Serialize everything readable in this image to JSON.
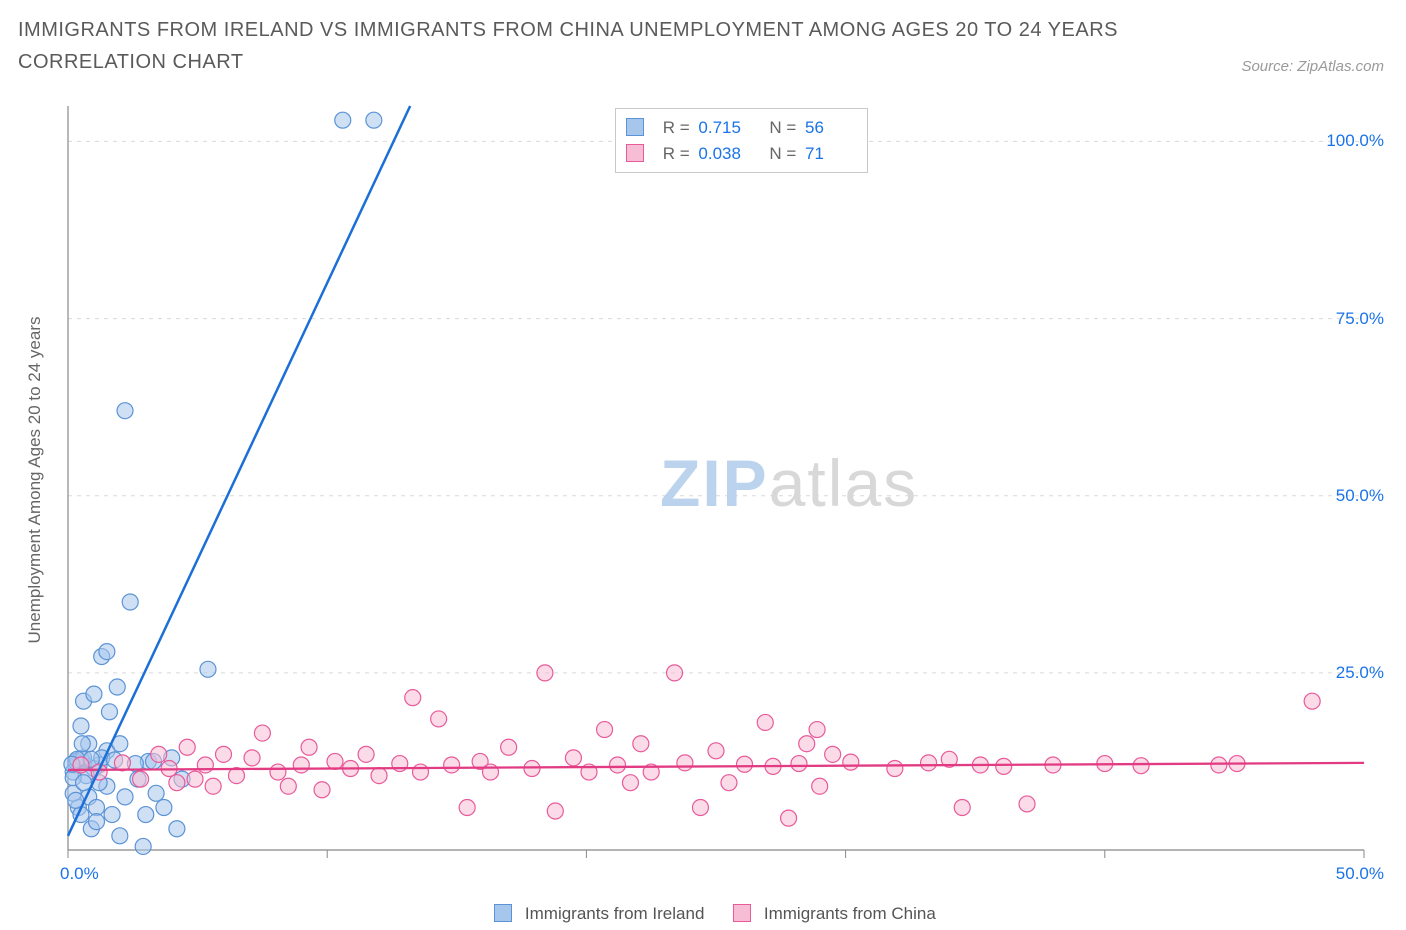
{
  "title": "IMMIGRANTS FROM IRELAND VS IMMIGRANTS FROM CHINA UNEMPLOYMENT AMONG AGES 20 TO 24 YEARS CORRELATION CHART",
  "source_label": "Source: ZipAtlas.com",
  "y_axis_label": "Unemployment Among Ages 20 to 24 years",
  "watermark": {
    "zip": "ZIP",
    "atlas": "atlas"
  },
  "legend": {
    "series_a_name": "Immigrants from Ireland",
    "series_b_name": "Immigrants from China"
  },
  "stats": {
    "series_a": {
      "R_label": "R =",
      "R_value": "0.715",
      "N_label": "N =",
      "N_value": "56"
    },
    "series_b": {
      "R_label": "R =",
      "R_value": "0.038",
      "N_label": "N =",
      "N_value": "71"
    }
  },
  "x_ticks": {
    "positions_pct": [
      0,
      20,
      40,
      60,
      80,
      100
    ],
    "labels": [
      "0.0%",
      "",
      "",
      "",
      "",
      "50.0%"
    ]
  },
  "y_ticks": {
    "positions_pct": [
      25,
      50,
      75,
      100
    ],
    "labels": [
      "25.0%",
      "50.0%",
      "75.0%",
      "100.0%"
    ]
  },
  "chart": {
    "type": "scatter",
    "xlim": [
      0,
      50
    ],
    "ylim": [
      0,
      105
    ],
    "background_color": "#ffffff",
    "grid_color": "#d9d9d9",
    "axis_color": "#888888",
    "marker_radius": 8,
    "marker_stroke_width": 1.2,
    "y_right_label_color": "#1a73e8",
    "x_label_color": "#1a73e8",
    "series_a": {
      "color_stroke": "#5b93d6",
      "color_fill": "#a7c6ec",
      "fill_opacity": 0.55,
      "regression": {
        "x1": 0,
        "y1": 2,
        "x2": 13.2,
        "y2": 105,
        "color": "#1b6fd6",
        "width": 2.5
      },
      "points": [
        [
          0.3,
          12
        ],
        [
          0.6,
          12.3
        ],
        [
          0.5,
          12.9
        ],
        [
          0.8,
          7.5
        ],
        [
          0.2,
          11
        ],
        [
          1.2,
          12
        ],
        [
          1.5,
          14
        ],
        [
          1.1,
          6
        ],
        [
          2.0,
          15
        ],
        [
          1.6,
          19.5
        ],
        [
          0.6,
          21
        ],
        [
          1.0,
          22
        ],
        [
          1.9,
          23
        ],
        [
          1.3,
          27.3
        ],
        [
          1.5,
          28
        ],
        [
          2.4,
          35
        ],
        [
          5.4,
          25.5
        ],
        [
          2.2,
          62
        ],
        [
          1.0,
          11.5
        ],
        [
          0.7,
          10.5
        ],
        [
          0.3,
          12.5
        ],
        [
          2.7,
          10
        ],
        [
          2.2,
          7.5
        ],
        [
          3.1,
          12.5
        ],
        [
          3.4,
          8
        ],
        [
          3.0,
          5
        ],
        [
          4.2,
          3
        ],
        [
          4.0,
          13
        ],
        [
          1.7,
          5
        ],
        [
          1.5,
          9
        ],
        [
          3.3,
          12.5
        ],
        [
          4.4,
          10
        ],
        [
          0.4,
          6
        ],
        [
          0.9,
          3
        ],
        [
          2.0,
          2
        ],
        [
          0.5,
          5
        ],
        [
          1.2,
          9.5
        ],
        [
          0.6,
          13
        ],
        [
          0.8,
          15
        ],
        [
          1.3,
          13
        ],
        [
          0.2,
          10.2
        ],
        [
          0.35,
          12.8
        ],
        [
          0.15,
          12.1
        ],
        [
          0.55,
          15
        ],
        [
          0.5,
          17.5
        ],
        [
          0.2,
          8
        ],
        [
          2.9,
          0.5
        ],
        [
          3.7,
          6
        ],
        [
          1.8,
          12.7
        ],
        [
          10.6,
          103
        ],
        [
          11.8,
          103
        ],
        [
          0.6,
          9.5
        ],
        [
          0.9,
          12.8
        ],
        [
          0.3,
          7
        ],
        [
          1.1,
          4
        ],
        [
          2.6,
          12.2
        ]
      ]
    },
    "series_b": {
      "color_stroke": "#e85a9a",
      "color_fill": "#f7bdd4",
      "fill_opacity": 0.55,
      "regression": {
        "x1": 0,
        "y1": 11.3,
        "x2": 50,
        "y2": 12.3,
        "color": "#e23b83",
        "width": 2.3
      },
      "points": [
        [
          0.5,
          12
        ],
        [
          1.2,
          11
        ],
        [
          2.1,
          12.3
        ],
        [
          2.8,
          10
        ],
        [
          3.5,
          13.5
        ],
        [
          3.9,
          11.5
        ],
        [
          4.2,
          9.5
        ],
        [
          4.6,
          14.5
        ],
        [
          4.9,
          10
        ],
        [
          5.3,
          12.0
        ],
        [
          5.6,
          9.0
        ],
        [
          6.0,
          13.5
        ],
        [
          6.5,
          10.5
        ],
        [
          7.1,
          13
        ],
        [
          7.5,
          16.5
        ],
        [
          8.1,
          11
        ],
        [
          8.5,
          9
        ],
        [
          9.0,
          12
        ],
        [
          9.3,
          14.5
        ],
        [
          9.8,
          8.5
        ],
        [
          10.3,
          12.5
        ],
        [
          10.9,
          11.5
        ],
        [
          11.5,
          13.5
        ],
        [
          12.0,
          10.5
        ],
        [
          12.8,
          12.2
        ],
        [
          13.3,
          21.5
        ],
        [
          13.6,
          11
        ],
        [
          14.3,
          18.5
        ],
        [
          14.8,
          12
        ],
        [
          15.4,
          6
        ],
        [
          15.9,
          12.5
        ],
        [
          16.3,
          11
        ],
        [
          17.0,
          14.5
        ],
        [
          17.9,
          11.5
        ],
        [
          18.4,
          25
        ],
        [
          18.8,
          5.5
        ],
        [
          19.5,
          13
        ],
        [
          20.1,
          11
        ],
        [
          20.7,
          17
        ],
        [
          21.2,
          12
        ],
        [
          21.7,
          9.5
        ],
        [
          22.1,
          15
        ],
        [
          22.5,
          11
        ],
        [
          23.4,
          25
        ],
        [
          23.8,
          12.3
        ],
        [
          24.4,
          6
        ],
        [
          25.0,
          14
        ],
        [
          25.5,
          9.5
        ],
        [
          26.1,
          12.1
        ],
        [
          26.9,
          18
        ],
        [
          27.2,
          11.8
        ],
        [
          27.8,
          4.5
        ],
        [
          28.2,
          12.2
        ],
        [
          28.5,
          15
        ],
        [
          28.9,
          17
        ],
        [
          29.0,
          9
        ],
        [
          29.5,
          13.5
        ],
        [
          30.2,
          12.4
        ],
        [
          31.9,
          11.5
        ],
        [
          34.0,
          12.8
        ],
        [
          34.5,
          6
        ],
        [
          35.2,
          12.0
        ],
        [
          36.1,
          11.8
        ],
        [
          37.0,
          6.5
        ],
        [
          38.0,
          12.0
        ],
        [
          40.0,
          12.2
        ],
        [
          41.4,
          11.9
        ],
        [
          44.4,
          12.0
        ],
        [
          48.0,
          21
        ],
        [
          45.1,
          12.2
        ],
        [
          33.2,
          12.3
        ]
      ]
    }
  }
}
